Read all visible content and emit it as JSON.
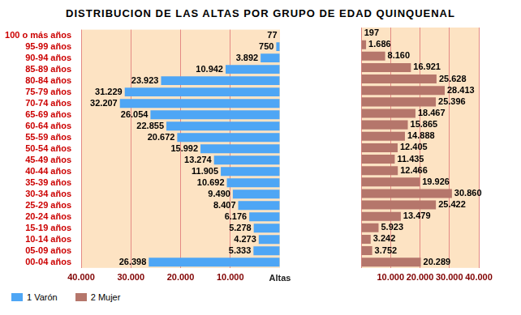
{
  "chart_data": {
    "type": "bar",
    "orientation": "horizontal",
    "title": "DISTRIBUCION DE LAS ALTAS POR GRUPO DE EDAD QUINQUENAL",
    "categories": [
      "100 o más años",
      "95-99 años",
      "90-94 años",
      "85-89 años",
      "80-84 años",
      "75-79 años",
      "70-74 años",
      "65-69 años",
      "60-64 años",
      "55-59 años",
      "50-54 años",
      "45-49 años",
      "40-44 años",
      "35-39 años",
      "30-34 años",
      "25-29 años",
      "20-24 años",
      "15-19 años",
      "10-14 años",
      "05-09 años",
      "00-04 años"
    ],
    "series": [
      {
        "name": "1 Varón",
        "color": "#4ea6f5",
        "values": [
          77,
          750,
          3892,
          10942,
          23923,
          31229,
          32207,
          26054,
          22855,
          20672,
          15992,
          13274,
          11905,
          10692,
          9490,
          8407,
          6176,
          5278,
          4273,
          5333,
          26398
        ],
        "value_labels": [
          "77",
          "750",
          "3.892",
          "10.942",
          "23.923",
          "31.229",
          "32.207",
          "26.054",
          "22.855",
          "20.672",
          "15.992",
          "13.274",
          "11.905",
          "10.692",
          "9.490",
          "8.407",
          "6.176",
          "5.278",
          "4.273",
          "5.333",
          "26.398"
        ]
      },
      {
        "name": "2 Mujer",
        "color": "#b5766b",
        "values": [
          197,
          1686,
          8160,
          16921,
          25628,
          28413,
          25396,
          18467,
          15865,
          14888,
          12405,
          11435,
          12466,
          19926,
          30860,
          25422,
          13479,
          5923,
          3242,
          3752,
          20289
        ],
        "value_labels": [
          "197",
          "1.686",
          "8.160",
          "16.921",
          "25.628",
          "28.413",
          "25.396",
          "18.467",
          "15.865",
          "14.888",
          "12.405",
          "11.435",
          "12.466",
          "19.926",
          "30.860",
          "25.422",
          "13.479",
          "5.923",
          "3.242",
          "3.752",
          "20.289"
        ]
      }
    ],
    "xlim": [
      0,
      40000
    ],
    "xticks": [
      {
        "value": 0,
        "label": "Altas"
      },
      {
        "value": 10000,
        "label": "10.000"
      },
      {
        "value": 20000,
        "label": "20.000"
      },
      {
        "value": 30000,
        "label": "30.000"
      },
      {
        "value": 40000,
        "label": "40.000"
      }
    ],
    "grid": true,
    "legend": "bottom left",
    "data_labels": true
  }
}
